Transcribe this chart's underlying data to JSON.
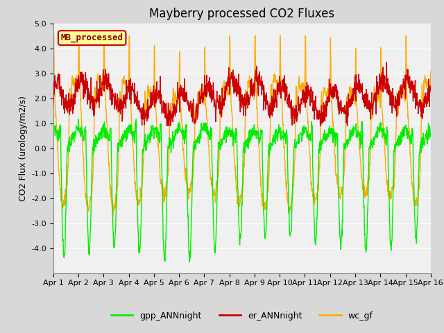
{
  "title": "Mayberry processed CO2 Fluxes",
  "ylabel": "CO2 Flux (urology/m2/s)",
  "ylim": [
    -5.0,
    5.0
  ],
  "yticks": [
    -4.0,
    -3.0,
    -2.0,
    -1.0,
    0.0,
    1.0,
    2.0,
    3.0,
    4.0,
    5.0
  ],
  "n_days": 15,
  "points_per_day": 96,
  "xtick_labels": [
    "Apr 1",
    "Apr 2",
    "Apr 3",
    "Apr 4",
    "Apr 5",
    "Apr 6",
    "Apr 7",
    "Apr 8",
    "Apr 9",
    "Apr 10",
    "Apr 11",
    "Apr 12",
    "Apr 13",
    "Apr 14",
    "Apr 15",
    "Apr 16"
  ],
  "gpp_color": "#00ee00",
  "er_color": "#cc0000",
  "wc_color": "#ffaa00",
  "legend_label": "MB_processed",
  "legend_text_color": "#880000",
  "legend_bg_color": "#ffff99",
  "legend_border_color": "#cc0000",
  "line_width": 1.0,
  "plot_bg_color": "#f0f0f0",
  "fig_bg_color": "#d8d8d8",
  "grid_color": "#ffffff",
  "title_fontsize": 12,
  "axis_fontsize": 9,
  "tick_fontsize": 8
}
